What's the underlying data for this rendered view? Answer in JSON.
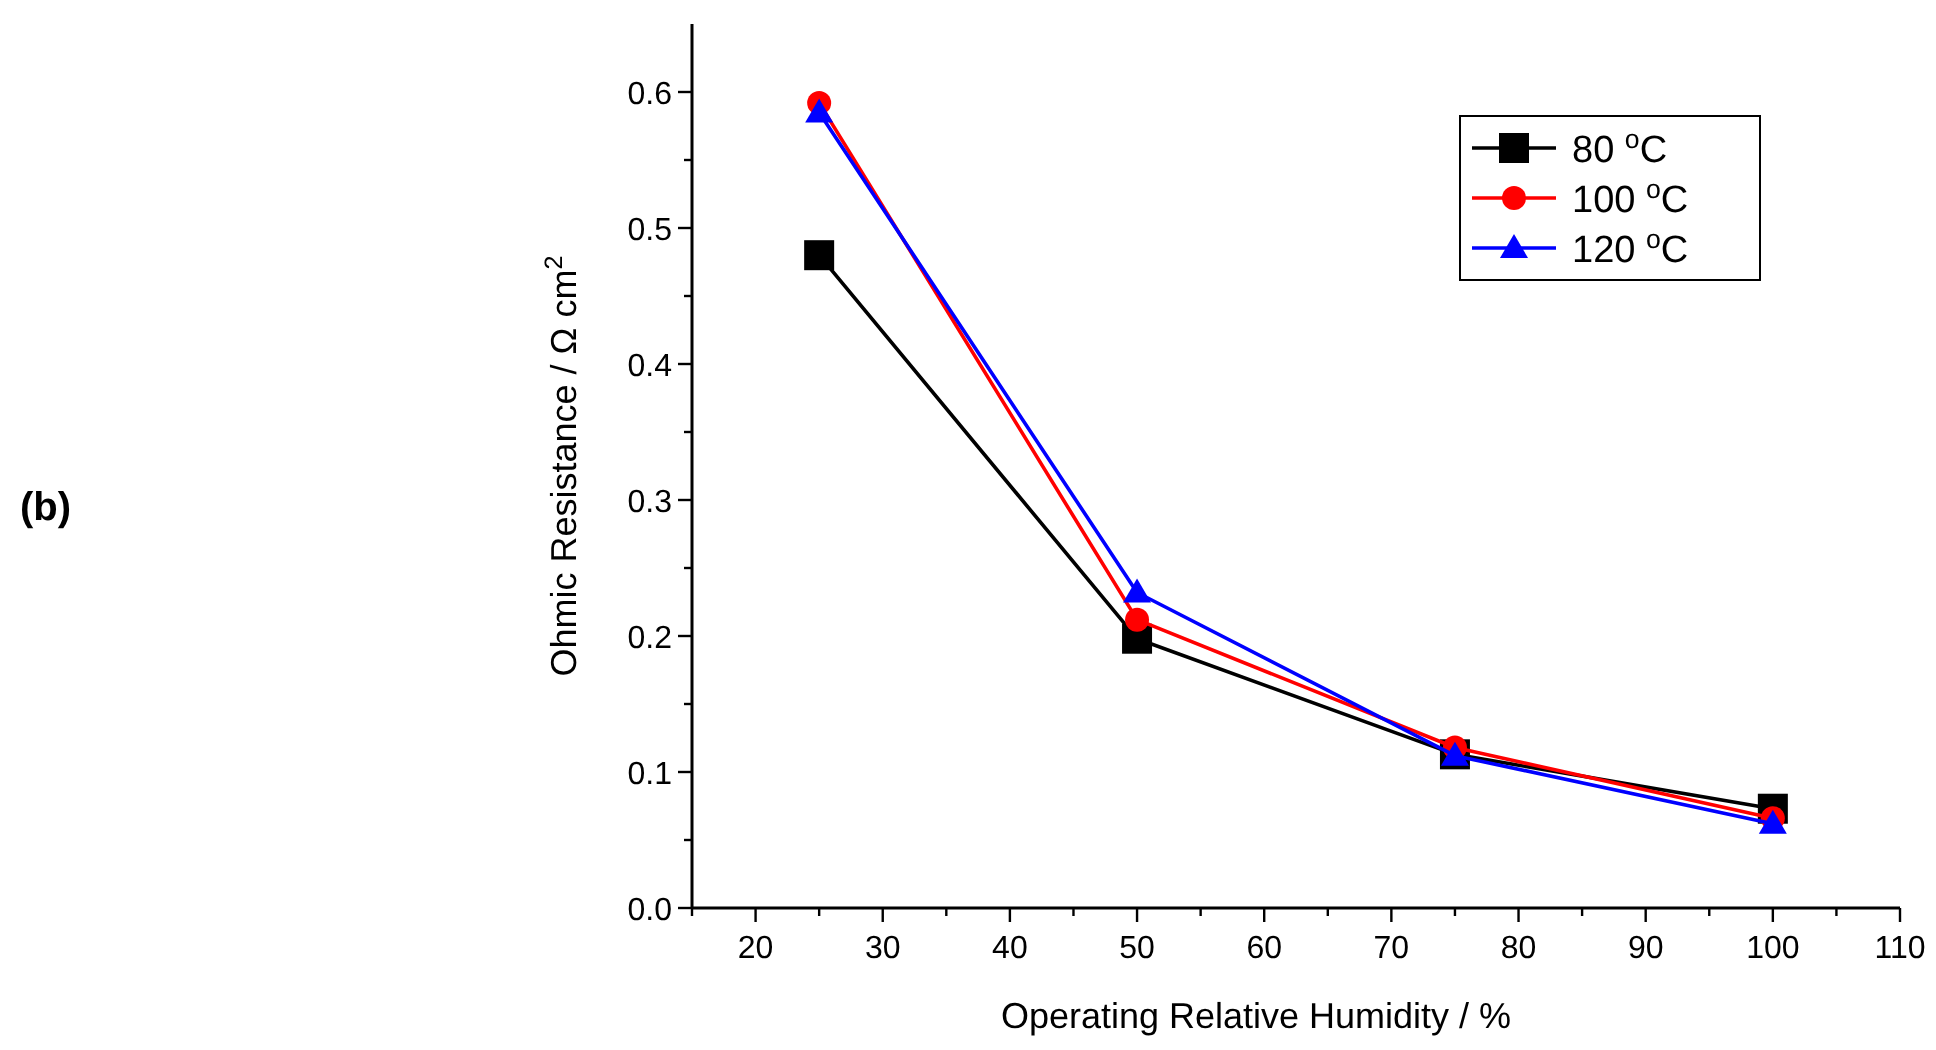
{
  "chart_data": {
    "type": "line",
    "xlabel": "Operating Relative Humidity / %",
    "ylabel": "Ohmic Resistance / Ω cm$^{2}$",
    "annotations": [
      "(b)"
    ],
    "x": [
      25,
      50,
      75,
      100
    ],
    "series": [
      {
        "name": "80 $^{o}$C",
        "color": "#000000",
        "marker": "square",
        "values": [
          0.48,
          0.198,
          0.113,
          0.073
        ]
      },
      {
        "name": "100 $^{o}$C",
        "color": "#ff0000",
        "marker": "circle",
        "values": [
          0.592,
          0.212,
          0.118,
          0.066
        ]
      },
      {
        "name": "120 $^{o}$C",
        "color": "#0000ff",
        "marker": "triangle",
        "values": [
          0.585,
          0.232,
          0.112,
          0.062
        ]
      }
    ],
    "xlim": [
      15,
      110
    ],
    "xticks": [
      {
        "value": 15,
        "label": null
      },
      20,
      {
        "value": 25,
        "label": null
      },
      30,
      {
        "value": 35,
        "label": null
      },
      40,
      {
        "value": 45,
        "label": null
      },
      50,
      {
        "value": 55,
        "label": null
      },
      60,
      {
        "value": 65,
        "label": null
      },
      70,
      {
        "value": 75,
        "label": null
      },
      80,
      {
        "value": 85,
        "label": null
      },
      90,
      {
        "value": 95,
        "label": null
      },
      100,
      {
        "value": 105,
        "label": null
      },
      110
    ],
    "ylim": [
      0,
      0.65
    ],
    "yticks": [
      "0.0",
      {
        "value": 0.05,
        "label": null
      },
      0.1,
      {
        "value": 0.15,
        "label": null
      },
      0.2,
      {
        "value": 0.25,
        "label": null
      },
      0.3,
      {
        "value": 0.35,
        "label": null
      },
      0.4,
      {
        "value": 0.45,
        "label": null
      },
      0.5,
      {
        "value": 0.55,
        "label": null
      },
      0.6
    ],
    "legend": "top right",
    "line_style": "solid",
    "grid": false
  }
}
